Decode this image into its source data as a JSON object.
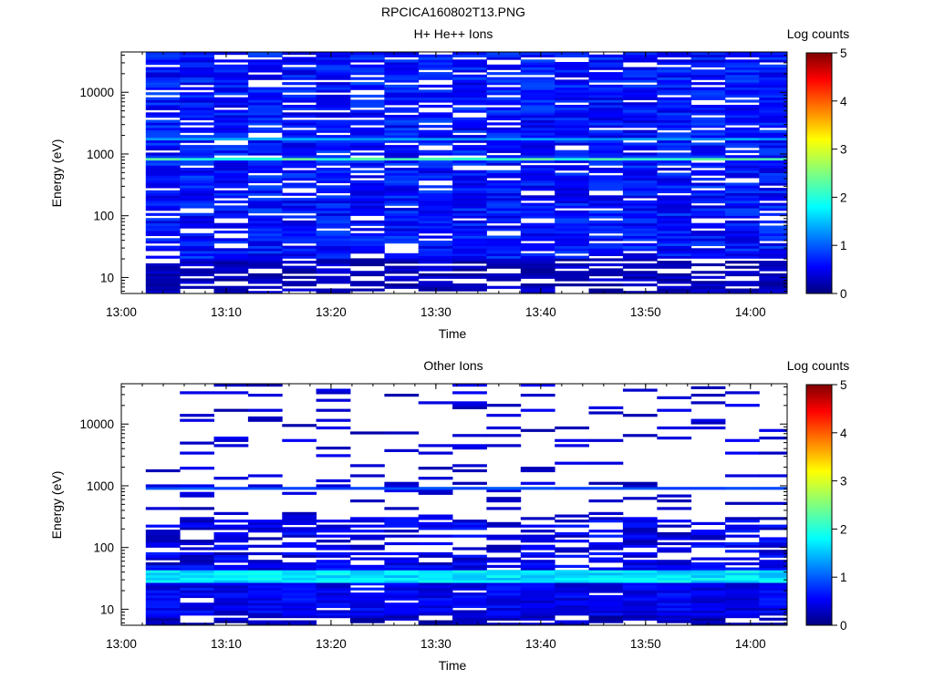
{
  "figure": {
    "title": "RPCICA160802T13.PNG"
  },
  "chart_data": [
    {
      "type": "heatmap",
      "title": "H+ He++ Ions",
      "xlabel": "Time",
      "ylabel": "Energy (eV)",
      "x_ticks": [
        "13:00",
        "13:10",
        "13:20",
        "13:30",
        "13:40",
        "13:50",
        "14:00"
      ],
      "y_ticks": [
        "10",
        "100",
        "1000",
        "10000"
      ],
      "y_scale": "log",
      "ylim": [
        5.5,
        45000
      ],
      "xlim": [
        "13:00",
        "14:03.5"
      ],
      "colorbar": {
        "label": "Log counts",
        "ticks": [
          "0",
          "1",
          "2",
          "3",
          "4",
          "5"
        ],
        "range": [
          0,
          5
        ]
      },
      "time_columns": [
        "13:02:20",
        "13:05:35",
        "13:08:50",
        "13:12:05",
        "13:15:20",
        "13:18:35",
        "13:21:50",
        "13:25:05",
        "13:28:20",
        "13:31:35",
        "13:34:50",
        "13:38:05",
        "13:41:20",
        "13:44:35",
        "13:47:50",
        "13:51:05",
        "13:54:20",
        "13:57:35",
        "14:00:50"
      ],
      "bands": [
        {
          "energy_range": [
            20,
            45000
          ],
          "log_counts": [
            0.4,
            1.0
          ],
          "gaps": 0.16
        },
        {
          "energy_range": [
            5.5,
            20
          ],
          "log_counts": [
            0.1,
            0.5
          ],
          "gaps": 0.3
        },
        {
          "energy_range": [
            800,
            900
          ],
          "log_counts": [
            2.0,
            2.4
          ],
          "gaps": 0
        },
        {
          "energy_range": [
            1650,
            1800
          ],
          "log_counts": [
            1.3,
            1.5
          ],
          "gaps": 0
        }
      ]
    },
    {
      "type": "heatmap",
      "title": "Other Ions",
      "xlabel": "Time",
      "ylabel": "Energy (eV)",
      "x_ticks": [
        "13:00",
        "13:10",
        "13:20",
        "13:30",
        "13:40",
        "13:50",
        "14:00"
      ],
      "y_ticks": [
        "10",
        "100",
        "1000",
        "10000"
      ],
      "y_scale": "log",
      "ylim": [
        5.5,
        45000
      ],
      "xlim": [
        "13:00",
        "14:03.5"
      ],
      "colorbar": {
        "label": "Log counts",
        "ticks": [
          "0",
          "1",
          "2",
          "3",
          "4",
          "5"
        ],
        "range": [
          0,
          5
        ]
      },
      "time_columns": [
        "13:02:20",
        "13:05:35",
        "13:08:50",
        "13:12:05",
        "13:15:20",
        "13:18:35",
        "13:21:50",
        "13:25:05",
        "13:28:20",
        "13:31:35",
        "13:34:50",
        "13:38:05",
        "13:41:20",
        "13:44:35",
        "13:47:50",
        "13:51:05",
        "13:54:20",
        "13:57:35",
        "14:00:50"
      ],
      "bands": [
        {
          "energy_range": [
            300,
            45000
          ],
          "log_counts": [
            0.2,
            0.6
          ],
          "gaps": 0.86
        },
        {
          "energy_range": [
            50,
            300
          ],
          "log_counts": [
            0.2,
            0.8
          ],
          "gaps": 0.4
        },
        {
          "energy_range": [
            8,
            50
          ],
          "log_counts": [
            0.3,
            0.8
          ],
          "gaps": 0.05
        },
        {
          "energy_range": [
            5.5,
            8
          ],
          "log_counts": [
            0.1,
            0.5
          ],
          "gaps": 0.35
        },
        {
          "energy_range": [
            850,
            920
          ],
          "log_counts": [
            0.9,
            1.1
          ],
          "gaps": 0
        },
        {
          "energy_range": [
            28,
            42
          ],
          "log_counts": [
            1.5,
            2.0
          ],
          "gaps": 0
        }
      ]
    }
  ],
  "colors": {
    "colormap": [
      "#00007f",
      "#0000ff",
      "#007fff",
      "#00ffff",
      "#7fff7f",
      "#ffff00",
      "#ff7f00",
      "#ff0000",
      "#7f0000"
    ],
    "background": "#ffffff",
    "axes": "#000000"
  }
}
